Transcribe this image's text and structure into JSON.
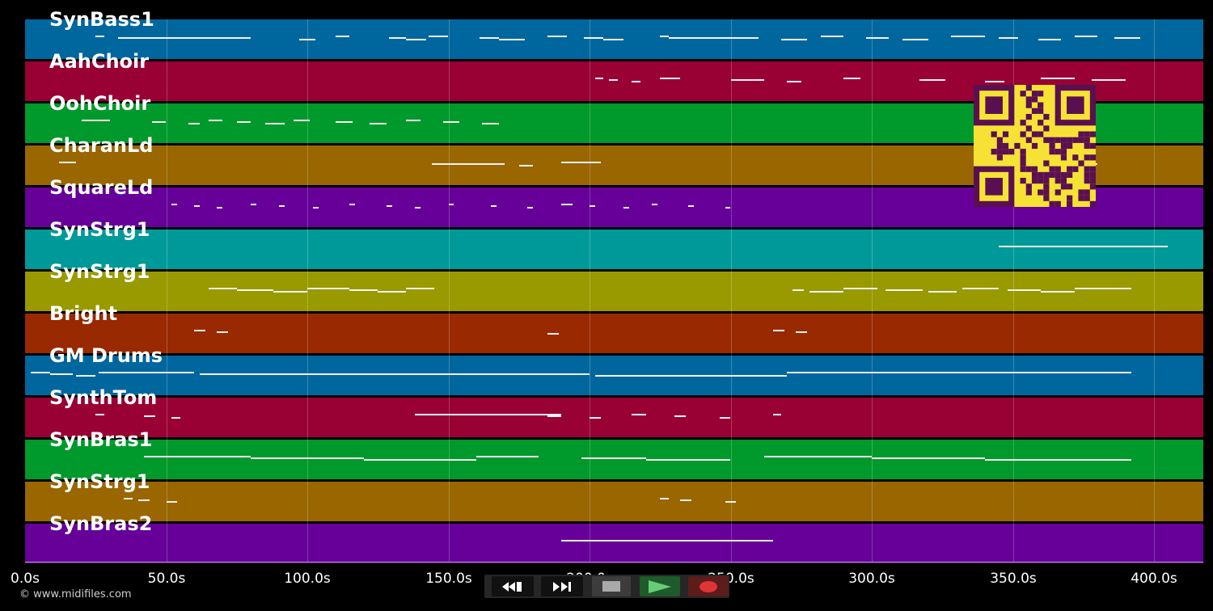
{
  "app": {
    "credit": "© www.midifiles.com"
  },
  "timeline": {
    "ticks": [
      "0.0s",
      "50.0s",
      "100.0s",
      "150.0s",
      "200.0s",
      "250.0s",
      "300.0s",
      "350.0s",
      "400.0s"
    ],
    "max_seconds": 416
  },
  "tracks": [
    {
      "label": "SynBass1",
      "color": "#00679e"
    },
    {
      "label": "AahChoir",
      "color": "#990033"
    },
    {
      "label": "OohChoir",
      "color": "#00992b"
    },
    {
      "label": "CharanLd",
      "color": "#996600"
    },
    {
      "label": "SquareLd",
      "color": "#660099"
    },
    {
      "label": "SynStrg1",
      "color": "#009999"
    },
    {
      "label": "SynStrg1",
      "color": "#999900"
    },
    {
      "label": "Bright",
      "color": "#992900"
    },
    {
      "label": "GM Drums",
      "color": "#00679e"
    },
    {
      "label": "SynthTom",
      "color": "#990033"
    },
    {
      "label": "SynBras1",
      "color": "#00992b"
    },
    {
      "label": "SynStrg1",
      "color": "#996600"
    },
    {
      "label": "SynBras2",
      "color": "#660099"
    }
  ],
  "notes": [
    [
      [
        25,
        28,
        0
      ],
      [
        33,
        80,
        0
      ],
      [
        97,
        103,
        0
      ],
      [
        110,
        115,
        0
      ],
      [
        129,
        135,
        0
      ],
      [
        135,
        142,
        0
      ],
      [
        143,
        150,
        0
      ],
      [
        161,
        168,
        0
      ],
      [
        168,
        177,
        0
      ],
      [
        185,
        192,
        0
      ],
      [
        198,
        205,
        0
      ],
      [
        205,
        212,
        0
      ],
      [
        225,
        228,
        0
      ],
      [
        228,
        260,
        0
      ],
      [
        268,
        277,
        0
      ],
      [
        282,
        290,
        0
      ],
      [
        298,
        306,
        0
      ],
      [
        311,
        320,
        0
      ],
      [
        328,
        340,
        0
      ],
      [
        345,
        352,
        0
      ],
      [
        359,
        367,
        0
      ],
      [
        372,
        380,
        0
      ],
      [
        386,
        395,
        0
      ]
    ],
    [
      [
        202,
        205,
        0
      ],
      [
        207,
        210,
        0
      ],
      [
        215,
        218,
        0
      ],
      [
        225,
        232,
        0
      ],
      [
        250,
        262,
        0
      ],
      [
        270,
        275,
        0
      ],
      [
        290,
        296,
        0
      ],
      [
        317,
        326,
        0
      ],
      [
        340,
        347,
        0
      ],
      [
        360,
        372,
        0
      ],
      [
        378,
        390,
        0
      ]
    ],
    [
      [
        20,
        30,
        0
      ],
      [
        45,
        50,
        0
      ],
      [
        58,
        62,
        0
      ],
      [
        65,
        70,
        0
      ],
      [
        75,
        80,
        0
      ],
      [
        85,
        92,
        0
      ],
      [
        95,
        101,
        0
      ],
      [
        110,
        116,
        0
      ],
      [
        122,
        128,
        0
      ],
      [
        135,
        140,
        0
      ],
      [
        148,
        154,
        0
      ],
      [
        162,
        168,
        0
      ]
    ],
    [
      [
        12,
        18,
        0
      ],
      [
        144,
        170,
        0
      ],
      [
        175,
        180,
        0
      ],
      [
        190,
        204,
        0
      ],
      [
        345,
        380,
        0
      ]
    ],
    [
      [
        52,
        54,
        0
      ],
      [
        60,
        62,
        0
      ],
      [
        68,
        70,
        0
      ],
      [
        80,
        82,
        0
      ],
      [
        90,
        92,
        0
      ],
      [
        102,
        104,
        0
      ],
      [
        115,
        117,
        0
      ],
      [
        128,
        130,
        0
      ],
      [
        138,
        140,
        0
      ],
      [
        150,
        152,
        0
      ],
      [
        165,
        167,
        0
      ],
      [
        178,
        180,
        0
      ],
      [
        190,
        194,
        0
      ],
      [
        200,
        202,
        0
      ],
      [
        212,
        214,
        0
      ],
      [
        222,
        224,
        0
      ],
      [
        235,
        237,
        0
      ],
      [
        248,
        250,
        0
      ]
    ],
    [
      [
        345,
        405,
        0
      ]
    ],
    [
      [
        65,
        75,
        0
      ],
      [
        75,
        88,
        0
      ],
      [
        88,
        100,
        0
      ],
      [
        100,
        115,
        0
      ],
      [
        115,
        125,
        0
      ],
      [
        125,
        135,
        0
      ],
      [
        135,
        145,
        0
      ],
      [
        272,
        276,
        0
      ],
      [
        278,
        290,
        0
      ],
      [
        290,
        302,
        0
      ],
      [
        305,
        318,
        0
      ],
      [
        320,
        330,
        0
      ],
      [
        332,
        345,
        0
      ],
      [
        348,
        360,
        0
      ],
      [
        360,
        372,
        0
      ],
      [
        372,
        392,
        0
      ]
    ],
    [
      [
        60,
        64,
        0
      ],
      [
        68,
        72,
        0
      ],
      [
        185,
        189,
        0
      ],
      [
        265,
        269,
        0
      ],
      [
        273,
        277,
        0
      ]
    ],
    [
      [
        2,
        9,
        0
      ],
      [
        9,
        17,
        0
      ],
      [
        18,
        25,
        0
      ],
      [
        26,
        60,
        0
      ],
      [
        62,
        200,
        0
      ],
      [
        202,
        270,
        0
      ],
      [
        270,
        392,
        0
      ]
    ],
    [
      [
        25,
        28,
        0
      ],
      [
        42,
        46,
        0
      ],
      [
        52,
        55,
        0
      ],
      [
        138,
        190,
        0
      ],
      [
        185,
        190,
        0
      ],
      [
        200,
        204,
        0
      ],
      [
        215,
        220,
        0
      ],
      [
        230,
        234,
        0
      ],
      [
        246,
        250,
        0
      ],
      [
        265,
        268,
        0
      ]
    ],
    [
      [
        42,
        80,
        0
      ],
      [
        80,
        120,
        0
      ],
      [
        120,
        160,
        0
      ],
      [
        160,
        182,
        0
      ],
      [
        197,
        220,
        0
      ],
      [
        220,
        250,
        0
      ],
      [
        262,
        300,
        0
      ],
      [
        300,
        340,
        0
      ],
      [
        340,
        392,
        0
      ]
    ],
    [
      [
        35,
        38,
        0
      ],
      [
        40,
        44,
        0
      ],
      [
        50,
        54,
        0
      ],
      [
        225,
        228,
        0
      ],
      [
        232,
        236,
        0
      ],
      [
        248,
        252,
        0
      ]
    ],
    [
      [
        190,
        265,
        0
      ]
    ]
  ]
}
